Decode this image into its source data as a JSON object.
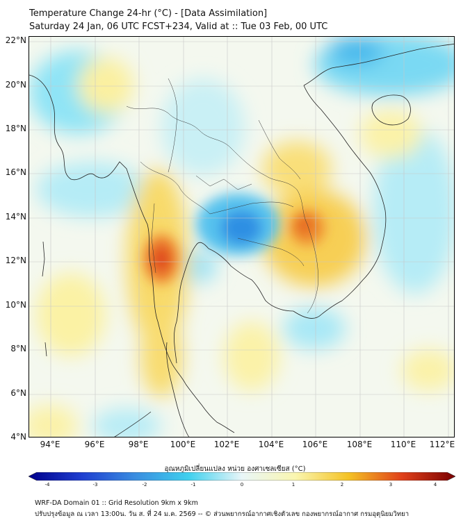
{
  "header": {
    "title": "Temperature Change 24-hr (°C) - [Data Assimilation]",
    "subtitle": "Saturday 24 Jan, 06 UTC FCST+234, Valid at :: Tue 03 Feb, 00 UTC"
  },
  "map": {
    "lat_labels": [
      "22°N",
      "20°N",
      "18°N",
      "16°N",
      "14°N",
      "12°N",
      "10°N",
      "8°N",
      "6°N",
      "4°N"
    ],
    "lon_labels": [
      "94°E",
      "96°E",
      "98°E",
      "100°E",
      "102°E",
      "104°E",
      "106°E",
      "108°E",
      "110°E",
      "112°E"
    ],
    "lat_range": [
      4,
      22.2
    ],
    "lon_range": [
      93,
      112.3
    ]
  },
  "colorbar": {
    "title": "อุณหภูมิเปลี่ยนแปลง หน่วย องศาเซลเซียส (°C)",
    "ticks": [
      "-4",
      "-3",
      "-2",
      "-1",
      "0",
      "1",
      "2",
      "3",
      "4"
    ],
    "range": [
      -4,
      4
    ],
    "colors": [
      "#00008b",
      "#1f3fd0",
      "#3a8de0",
      "#3fd0ee",
      "#e9f6f8",
      "#faf6b0",
      "#f4c225",
      "#e0401a",
      "#7a0000"
    ]
  },
  "footer": {
    "line1": "WRF-DA Domain 01 :: Grid Resolution 9km x 9km",
    "line2": "ปรับปรุงข้อมูล ณ เวลา 13:00น. วัน ส. ที่ 24 ม.ค. 2569 -- © ส่วนพยากรณ์อากาศเชิงตัวเลข กองพยากรณ์อากาศ กรมอุตุนิยมวิทยา"
  }
}
